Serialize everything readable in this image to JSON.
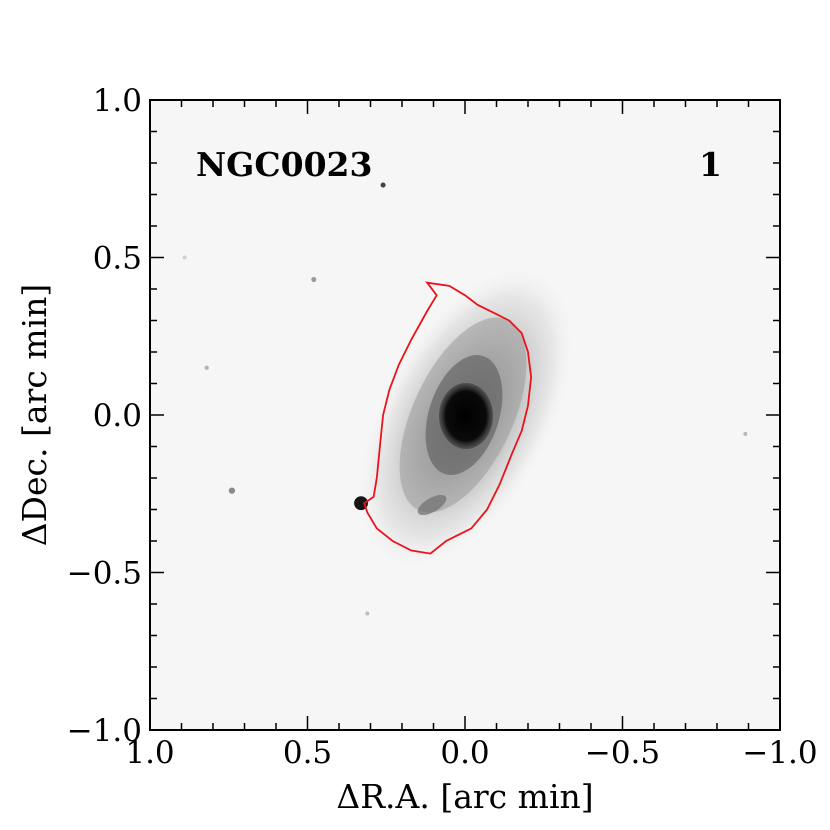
{
  "figure": {
    "object_name": "NGC0023",
    "panel_number": "1",
    "colors": {
      "contour": "#e8141c",
      "frame": "#000000",
      "background": "#f6f6f6"
    }
  },
  "chart_data": {
    "type": "image",
    "xlabel": "ΔR.A. [arc min]",
    "ylabel": "ΔDec. [arc min]",
    "xlim": [
      1.0,
      -1.0
    ],
    "ylim": [
      -1.0,
      1.0
    ],
    "x_ticks": [
      1.0,
      0.5,
      0.0,
      -0.5,
      -1.0
    ],
    "x_tick_labels": [
      "1.0",
      "0.5",
      "0.0",
      "−0.5",
      "−1.0"
    ],
    "y_ticks": [
      -1.0,
      -0.5,
      0.0,
      0.5,
      1.0
    ],
    "y_tick_labels": [
      "−1.0",
      "−0.5",
      "0.0",
      "0.5",
      "1.0"
    ],
    "minor_tick_step": 0.1,
    "galaxy_center": [
      0.0,
      0.0
    ],
    "contour": [
      [
        0.12,
        0.42
      ],
      [
        0.05,
        0.41
      ],
      [
        0.0,
        0.38
      ],
      [
        -0.04,
        0.35
      ],
      [
        -0.1,
        0.32
      ],
      [
        -0.14,
        0.3
      ],
      [
        -0.18,
        0.26
      ],
      [
        -0.2,
        0.2
      ],
      [
        -0.21,
        0.12
      ],
      [
        -0.2,
        0.03
      ],
      [
        -0.18,
        -0.05
      ],
      [
        -0.15,
        -0.12
      ],
      [
        -0.11,
        -0.22
      ],
      [
        -0.07,
        -0.3
      ],
      [
        -0.02,
        -0.36
      ],
      [
        0.02,
        -0.38
      ],
      [
        0.06,
        -0.4
      ],
      [
        0.11,
        -0.44
      ],
      [
        0.17,
        -0.43
      ],
      [
        0.23,
        -0.4
      ],
      [
        0.28,
        -0.36
      ],
      [
        0.31,
        -0.31
      ],
      [
        0.32,
        -0.28
      ],
      [
        0.29,
        -0.26
      ],
      [
        0.28,
        -0.2
      ],
      [
        0.27,
        -0.1
      ],
      [
        0.26,
        0.0
      ],
      [
        0.24,
        0.08
      ],
      [
        0.21,
        0.16
      ],
      [
        0.17,
        0.24
      ],
      [
        0.12,
        0.33
      ],
      [
        0.09,
        0.38
      ],
      [
        0.12,
        0.42
      ]
    ],
    "point_sources": [
      {
        "x": 0.33,
        "y": -0.28,
        "r": 0.022,
        "shade": "#151515"
      },
      {
        "x": 0.26,
        "y": 0.73,
        "r": 0.008,
        "shade": "#444444"
      },
      {
        "x": 0.48,
        "y": 0.43,
        "r": 0.008,
        "shade": "#999999"
      },
      {
        "x": 0.74,
        "y": -0.24,
        "r": 0.01,
        "shade": "#8a8a8a"
      },
      {
        "x": 0.82,
        "y": 0.15,
        "r": 0.007,
        "shade": "#b5b5b5"
      },
      {
        "x": 0.31,
        "y": -0.63,
        "r": 0.006,
        "shade": "#bdbdbd"
      },
      {
        "x": -0.89,
        "y": -0.06,
        "r": 0.006,
        "shade": "#b8b8b8"
      },
      {
        "x": 0.89,
        "y": 0.5,
        "r": 0.005,
        "shade": "#d0d0d0"
      }
    ]
  }
}
